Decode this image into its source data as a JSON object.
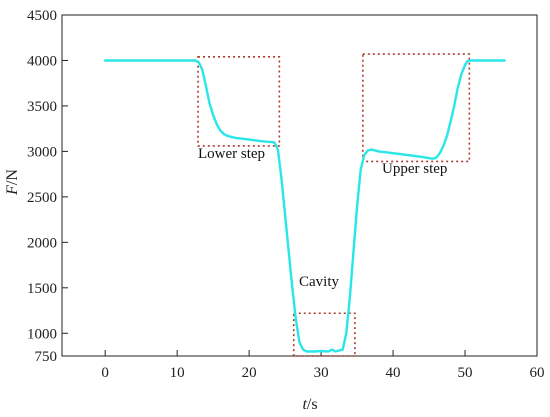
{
  "chart_data": {
    "type": "line",
    "xlabel_var": "t",
    "xlabel_unit": "/s",
    "ylabel_var": "F",
    "ylabel_unit": "/N",
    "xlim": [
      -6,
      60
    ],
    "ylim": [
      750,
      4500
    ],
    "xticks": [
      0,
      10,
      20,
      30,
      40,
      50,
      60
    ],
    "yticks": [
      750,
      1000,
      1500,
      2000,
      2500,
      3000,
      3500,
      4000,
      4500
    ],
    "grid": false,
    "line_color": "#29e6e9",
    "box_color": "#b03a2e",
    "series": [
      {
        "x": [
          0,
          12.5,
          13,
          13.5,
          14,
          14.5,
          15,
          15.5,
          16,
          16.5,
          17,
          18,
          20,
          22,
          23.5,
          24,
          24.5,
          25,
          25.5,
          26,
          26.5,
          27,
          27.5,
          28,
          29,
          30,
          31,
          31.5,
          32,
          32.5,
          33,
          33.5,
          34,
          34.5,
          35,
          35.5,
          36,
          36.5,
          37,
          38,
          40,
          42,
          44,
          45.5,
          46,
          46.5,
          47,
          47.5,
          48,
          48.5,
          49,
          49.5,
          50,
          50.3,
          50.6,
          51,
          55.5
        ],
        "y": [
          4000,
          4000,
          3980,
          3900,
          3720,
          3530,
          3400,
          3300,
          3230,
          3190,
          3170,
          3150,
          3130,
          3110,
          3100,
          3020,
          2700,
          2300,
          1900,
          1500,
          1150,
          900,
          820,
          800,
          800,
          805,
          800,
          820,
          800,
          810,
          820,
          1000,
          1400,
          1900,
          2400,
          2800,
          2960,
          3010,
          3020,
          3000,
          2980,
          2960,
          2940,
          2920,
          2930,
          2980,
          3060,
          3170,
          3330,
          3500,
          3700,
          3850,
          3950,
          3990,
          4000,
          4000,
          4000
        ]
      }
    ],
    "annotations": [
      {
        "id": "lower_step",
        "label": "Lower step",
        "box": {
          "x0": 12.9,
          "x1": 24.2,
          "y0": 3060,
          "y1": 4040
        }
      },
      {
        "id": "cavity",
        "label": "Cavity",
        "box": {
          "x0": 26.2,
          "x1": 34.7,
          "y0": 750,
          "y1": 1220
        }
      },
      {
        "id": "upper_step",
        "label": "Upper step",
        "box": {
          "x0": 35.8,
          "x1": 50.6,
          "y0": 2890,
          "y1": 4070
        }
      }
    ]
  }
}
